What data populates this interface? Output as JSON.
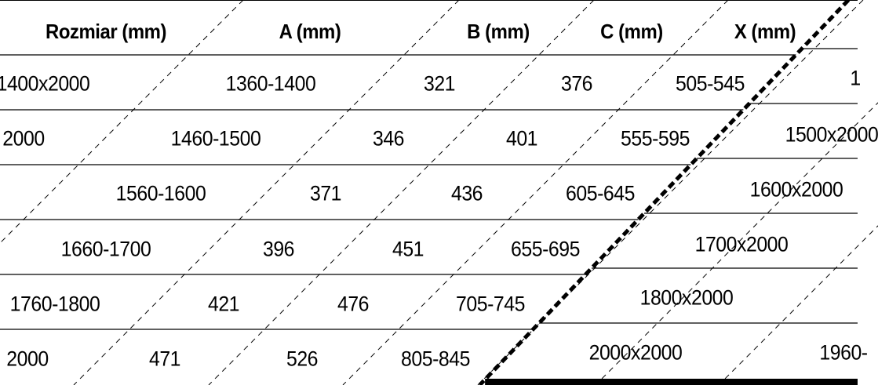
{
  "table": {
    "headers": [
      "Rozmiar (mm)",
      "A (mm)",
      "B (mm)",
      "C (mm)",
      "X (mm)"
    ],
    "rows": [
      [
        "1400x2000",
        "1360-1400",
        "321",
        "376",
        "505-545",
        "1"
      ],
      [
        "2000",
        "1460-1500",
        "346",
        "401",
        "555-595",
        "1500x2000"
      ],
      [
        "1560-1600",
        "371",
        "436",
        "605-645",
        "1600x2000"
      ],
      [
        "1660-1700",
        "396",
        "451",
        "655-695",
        "1700x2000"
      ],
      [
        "1760-1800",
        "421",
        "476",
        "705-745",
        "1800x2000"
      ],
      [
        "2000",
        "471",
        "526",
        "805-845",
        "2000x2000",
        "1960-"
      ]
    ]
  },
  "colors": {
    "text": "#000000",
    "background": "#ffffff",
    "rule": "#000000"
  }
}
